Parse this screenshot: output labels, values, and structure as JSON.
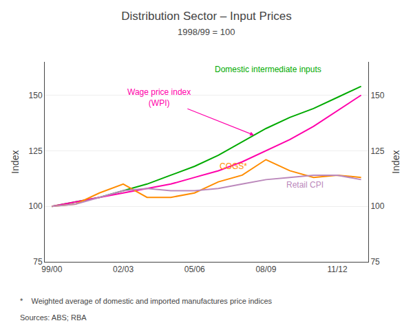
{
  "chart_data": {
    "type": "line",
    "title": "Distribution Sector – Input Prices",
    "subtitle": "1998/99 = 100",
    "ylabel": "Index",
    "y2label": "Index",
    "x": [
      0,
      1,
      2,
      3,
      4,
      5,
      6,
      7,
      8,
      9,
      10,
      11,
      12,
      13
    ],
    "series": [
      {
        "color": "#00AA00",
        "values": [
          100,
          102,
          104,
          107,
          110,
          114,
          118,
          123,
          129,
          135,
          140,
          144,
          149,
          154
        ]
      },
      {
        "color": "#FF00AA",
        "values": [
          100,
          102,
          104,
          106,
          108,
          110,
          113,
          116,
          120,
          125,
          130,
          136,
          143,
          150
        ]
      },
      {
        "color": "#FF8C00",
        "values": [
          100,
          101,
          106,
          110,
          104,
          104,
          106,
          111,
          114,
          121,
          116,
          113,
          114,
          113
        ]
      },
      {
        "color": "#BB88BB",
        "values": [
          100,
          101,
          104,
          107,
          108,
          107,
          107,
          108,
          110,
          112,
          113,
          114,
          114,
          112
        ]
      }
    ],
    "xlim": [
      -0.3,
      13.3
    ],
    "xticks": [
      {
        "value": 0,
        "label": "99/00"
      },
      {
        "value": 3,
        "label": "02/03"
      },
      {
        "value": 6,
        "label": "05/06"
      },
      {
        "value": 9,
        "label": "08/09"
      },
      {
        "value": 12,
        "label": "11/12"
      }
    ],
    "ylim": [
      75,
      165
    ],
    "yticks": [
      75,
      100,
      125,
      150
    ],
    "y2lim": [
      75,
      165
    ],
    "y2ticks": [
      75,
      100,
      125,
      150
    ],
    "grid": true,
    "annotations": [
      {
        "text": "Domestic intermediate inputs",
        "x": 6.8,
        "y": 161.5,
        "color": "#00AA00"
      },
      {
        "text": "Wage price index\n(WPI)",
        "x": 4.5,
        "y": 149,
        "color": "#FF00AA",
        "arrow_to": [
          8.5,
          132
        ]
      },
      {
        "text": "COGS*",
        "x": 7.0,
        "y": 118,
        "color": "#FF8C00"
      },
      {
        "text": "Retail CPI",
        "x": 9.8,
        "y": 109.5,
        "color": "#BB88BB"
      }
    ],
    "footnotes": [
      "*    Weighted average of domestic and imported manufactures price indices",
      "Sources: ABS; RBA"
    ]
  }
}
